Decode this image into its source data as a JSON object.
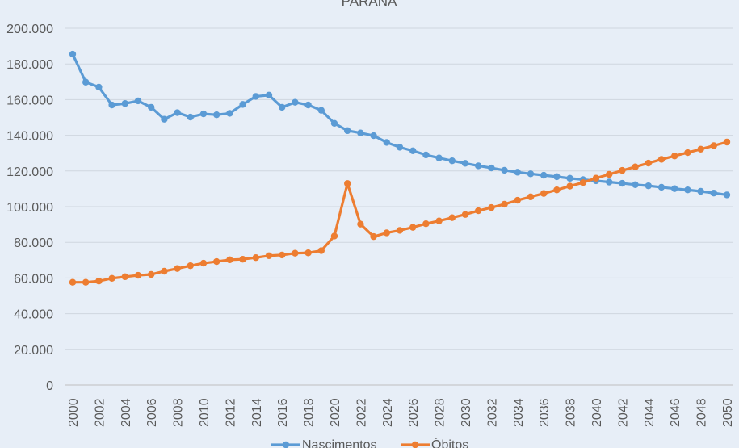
{
  "chart_data": {
    "type": "line",
    "title": "PARANÁ",
    "xlabel": "",
    "ylabel": "",
    "ylim": [
      0,
      200000
    ],
    "yticks": [
      0,
      20000,
      40000,
      60000,
      80000,
      100000,
      120000,
      140000,
      160000,
      180000,
      200000
    ],
    "ytick_labels": [
      "0",
      "20.000",
      "40.000",
      "60.000",
      "80.000",
      "100.000",
      "120.000",
      "140.000",
      "160.000",
      "180.000",
      "200.000"
    ],
    "x": [
      2000,
      2001,
      2002,
      2003,
      2004,
      2005,
      2006,
      2007,
      2008,
      2009,
      2010,
      2011,
      2012,
      2013,
      2014,
      2015,
      2016,
      2017,
      2018,
      2019,
      2020,
      2021,
      2022,
      2023,
      2024,
      2025,
      2026,
      2027,
      2028,
      2029,
      2030,
      2031,
      2032,
      2033,
      2034,
      2035,
      2036,
      2037,
      2038,
      2039,
      2040,
      2041,
      2042,
      2043,
      2044,
      2045,
      2046,
      2047,
      2048,
      2049,
      2050
    ],
    "xtick_labels": [
      "2000",
      "2002",
      "2004",
      "2006",
      "2008",
      "2010",
      "2012",
      "2014",
      "2016",
      "2018",
      "2020",
      "2022",
      "2024",
      "2026",
      "2028",
      "2030",
      "2032",
      "2034",
      "2036",
      "2038",
      "2040",
      "2042",
      "2044",
      "2046",
      "2048",
      "2050"
    ],
    "grid": true,
    "legend_position": "bottom",
    "series": [
      {
        "name": "Nascimentos",
        "color": "#5b9bd5",
        "values": [
          185500,
          169800,
          167000,
          157000,
          157800,
          159300,
          155700,
          149000,
          152700,
          150200,
          152000,
          151500,
          152300,
          157300,
          161800,
          162500,
          155700,
          158500,
          157000,
          154000,
          146700,
          142600,
          141300,
          139800,
          136000,
          133300,
          131300,
          129000,
          127300,
          125700,
          124300,
          122900,
          121700,
          120400,
          119300,
          118400,
          117600,
          116800,
          115900,
          115200,
          114500,
          113800,
          113100,
          112300,
          111700,
          110900,
          110100,
          109400,
          108600,
          107600,
          106600
        ]
      },
      {
        "name": "Óbitos",
        "color": "#ed7d31",
        "values": [
          57600,
          57600,
          58300,
          59800,
          60700,
          61500,
          62000,
          63800,
          65300,
          66900,
          68300,
          69200,
          70200,
          70500,
          71400,
          72500,
          72900,
          73900,
          74100,
          75300,
          83500,
          113000,
          90200,
          83200,
          85300,
          86700,
          88400,
          90400,
          92000,
          93800,
          95600,
          97700,
          99500,
          101400,
          103600,
          105500,
          107400,
          109400,
          111500,
          113500,
          116000,
          118100,
          120300,
          122300,
          124400,
          126500,
          128400,
          130300,
          132200,
          134200,
          136200
        ]
      }
    ]
  }
}
